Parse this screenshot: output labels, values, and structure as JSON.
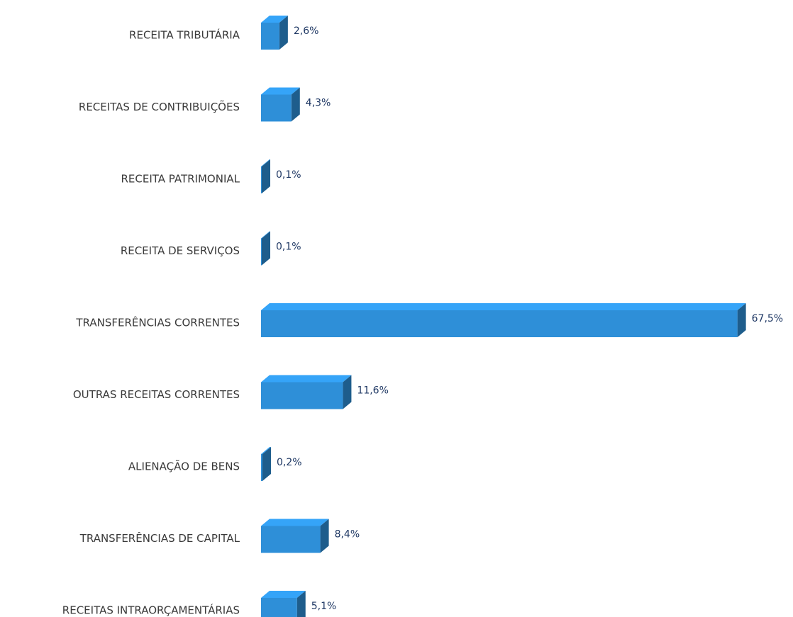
{
  "chart_data": {
    "type": "bar3d",
    "categories": [
      "RECEITA TRIBUTÁRIA",
      "RECEITAS DE CONTRIBUIÇÕES",
      "RECEITA PATRIMONIAL",
      "RECEITA DE SERVIÇOS",
      "TRANSFERÊNCIAS CORRENTES",
      "OUTRAS RECEITAS CORRENTES",
      "ALIENAÇÃO DE BENS",
      "TRANSFERÊNCIAS DE CAPITAL",
      "RECEITAS INTRAORÇAMENTÁRIAS"
    ],
    "values": [
      2.6,
      4.3,
      0.1,
      0.1,
      67.5,
      11.6,
      0.2,
      8.4,
      5.1
    ],
    "value_labels": [
      "2,6%",
      "4,3%",
      "0,1%",
      "0,1%",
      "67,5%",
      "11,6%",
      "0,2%",
      "8,4%",
      "5,1%"
    ],
    "color": "#2e8fd8"
  }
}
